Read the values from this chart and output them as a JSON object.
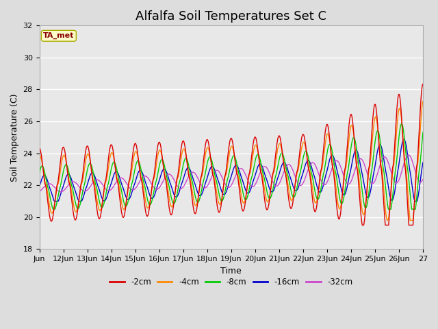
{
  "title": "Alfalfa Soil Temperatures Set C",
  "xlabel": "Time",
  "ylabel": "Soil Temperature (C)",
  "ylim": [
    18,
    32
  ],
  "xlim": [
    0,
    16
  ],
  "x_tick_labels": [
    "Jun",
    "12Jun",
    "13Jun",
    "14Jun",
    "15Jun",
    "16Jun",
    "17Jun",
    "18Jun",
    "19Jun",
    "20Jun",
    "21Jun",
    "22Jun",
    "23Jun",
    "24Jun",
    "25Jun",
    "26Jun",
    "27"
  ],
  "x_tick_positions": [
    0,
    1,
    2,
    3,
    4,
    5,
    6,
    7,
    8,
    9,
    10,
    11,
    12,
    13,
    14,
    15,
    16
  ],
  "y_ticks": [
    18,
    20,
    22,
    24,
    26,
    28,
    30,
    32
  ],
  "colors": {
    "-2cm": "#dd0000",
    "-4cm": "#ff8800",
    "-8cm": "#00cc00",
    "-16cm": "#0000cc",
    "-32cm": "#cc44cc"
  },
  "legend_label": "TA_met",
  "legend_box_facecolor": "#ffffcc",
  "legend_text_color": "#880000",
  "legend_edge_color": "#aaaa00",
  "fig_facecolor": "#dddddd",
  "plot_facecolor": "#e8e8e8",
  "title_fontsize": 13,
  "axis_label_fontsize": 9,
  "tick_fontsize": 8
}
